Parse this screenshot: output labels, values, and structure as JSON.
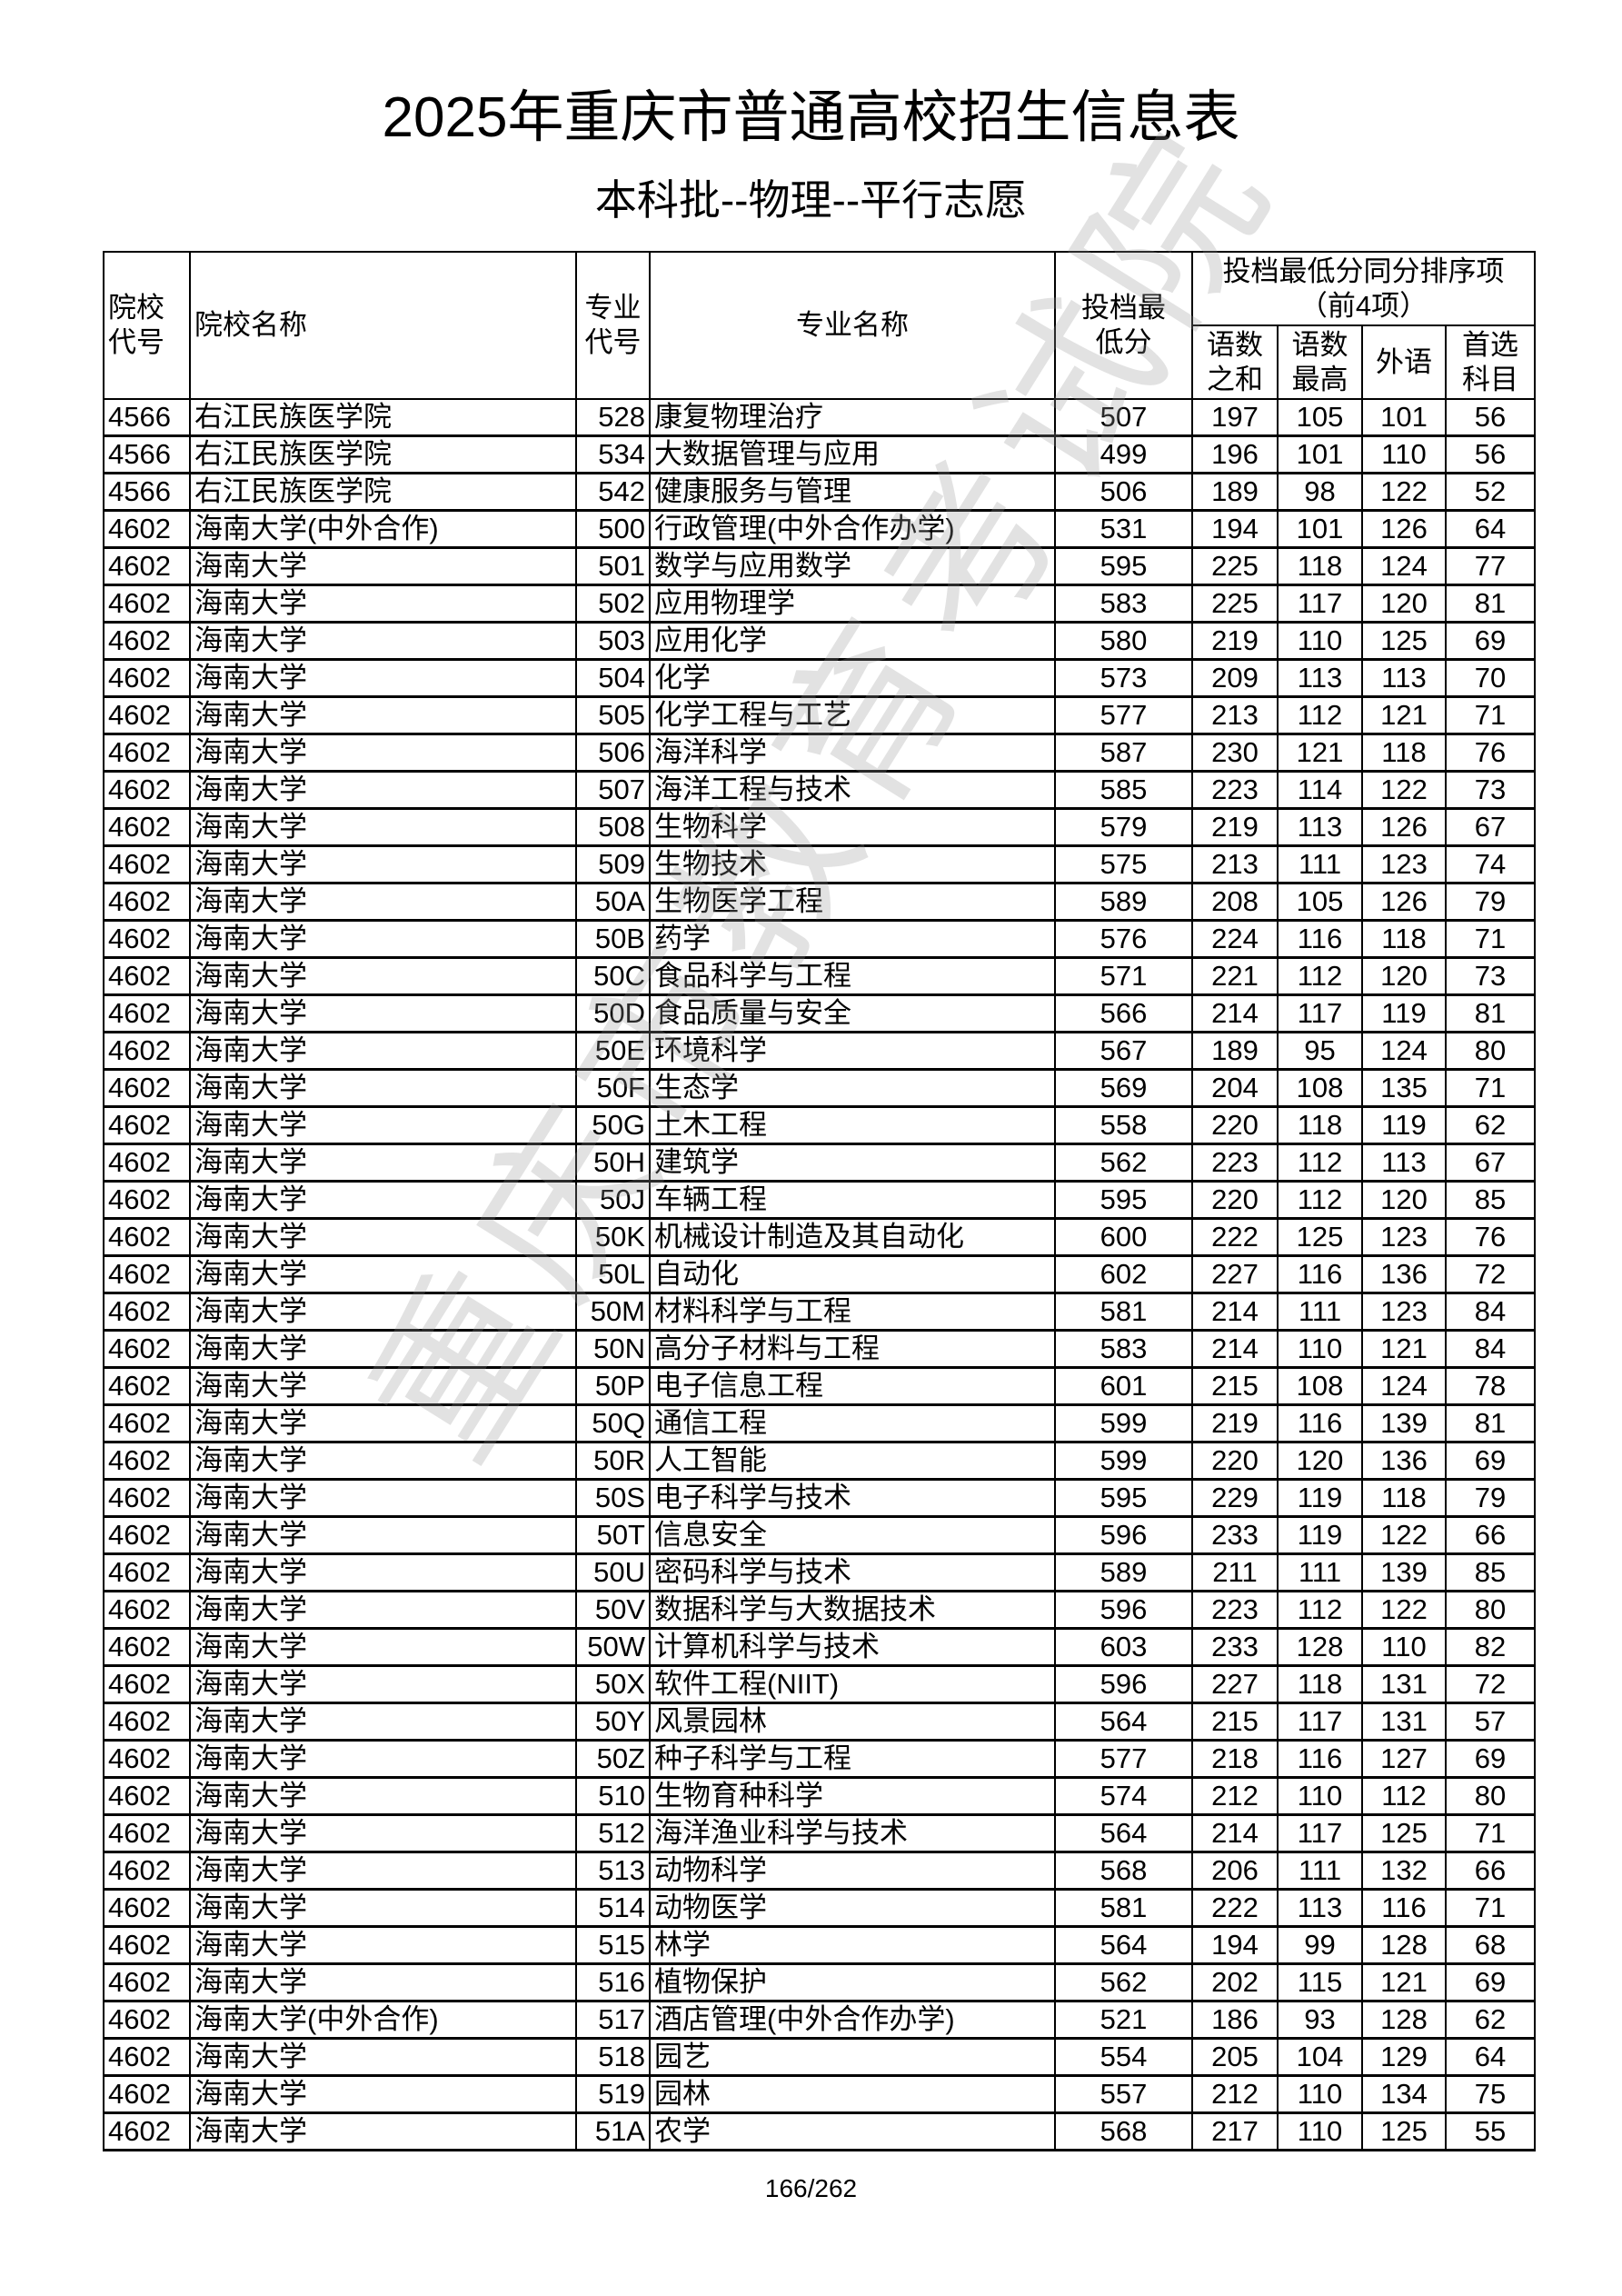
{
  "title": "2025年重庆市普通高校招生信息表",
  "subtitle": "本科批--物理--平行志愿",
  "watermark": "重庆市教育考试院",
  "header": {
    "school_code": "院校代号",
    "school_name": "院校名称",
    "major_code": "专业代号",
    "major_name": "专业名称",
    "min_score": "投档最低分",
    "tiebreak_group": "投档最低分同分排序项（前4项）",
    "tiebreak": [
      "语数之和",
      "语数最高",
      "外语",
      "首选科目"
    ]
  },
  "rows": [
    [
      "4566",
      "右江民族医学院",
      "528",
      "康复物理治疗",
      "507",
      "197",
      "105",
      "101",
      "56"
    ],
    [
      "4566",
      "右江民族医学院",
      "534",
      "大数据管理与应用",
      "499",
      "196",
      "101",
      "110",
      "56"
    ],
    [
      "4566",
      "右江民族医学院",
      "542",
      "健康服务与管理",
      "506",
      "189",
      "98",
      "122",
      "52"
    ],
    [
      "4602",
      "海南大学(中外合作)",
      "500",
      "行政管理(中外合作办学)",
      "531",
      "194",
      "101",
      "126",
      "64"
    ],
    [
      "4602",
      "海南大学",
      "501",
      "数学与应用数学",
      "595",
      "225",
      "118",
      "124",
      "77"
    ],
    [
      "4602",
      "海南大学",
      "502",
      "应用物理学",
      "583",
      "225",
      "117",
      "120",
      "81"
    ],
    [
      "4602",
      "海南大学",
      "503",
      "应用化学",
      "580",
      "219",
      "110",
      "125",
      "69"
    ],
    [
      "4602",
      "海南大学",
      "504",
      "化学",
      "573",
      "209",
      "113",
      "113",
      "70"
    ],
    [
      "4602",
      "海南大学",
      "505",
      "化学工程与工艺",
      "577",
      "213",
      "112",
      "121",
      "71"
    ],
    [
      "4602",
      "海南大学",
      "506",
      "海洋科学",
      "587",
      "230",
      "121",
      "118",
      "76"
    ],
    [
      "4602",
      "海南大学",
      "507",
      "海洋工程与技术",
      "585",
      "223",
      "114",
      "122",
      "73"
    ],
    [
      "4602",
      "海南大学",
      "508",
      "生物科学",
      "579",
      "219",
      "113",
      "126",
      "67"
    ],
    [
      "4602",
      "海南大学",
      "509",
      "生物技术",
      "575",
      "213",
      "111",
      "123",
      "74"
    ],
    [
      "4602",
      "海南大学",
      "50A",
      "生物医学工程",
      "589",
      "208",
      "105",
      "126",
      "79"
    ],
    [
      "4602",
      "海南大学",
      "50B",
      "药学",
      "576",
      "224",
      "116",
      "118",
      "71"
    ],
    [
      "4602",
      "海南大学",
      "50C",
      "食品科学与工程",
      "571",
      "221",
      "112",
      "120",
      "73"
    ],
    [
      "4602",
      "海南大学",
      "50D",
      "食品质量与安全",
      "566",
      "214",
      "117",
      "119",
      "81"
    ],
    [
      "4602",
      "海南大学",
      "50E",
      "环境科学",
      "567",
      "189",
      "95",
      "124",
      "80"
    ],
    [
      "4602",
      "海南大学",
      "50F",
      "生态学",
      "569",
      "204",
      "108",
      "135",
      "71"
    ],
    [
      "4602",
      "海南大学",
      "50G",
      "土木工程",
      "558",
      "220",
      "118",
      "119",
      "62"
    ],
    [
      "4602",
      "海南大学",
      "50H",
      "建筑学",
      "562",
      "223",
      "112",
      "113",
      "67"
    ],
    [
      "4602",
      "海南大学",
      "50J",
      "车辆工程",
      "595",
      "220",
      "112",
      "120",
      "85"
    ],
    [
      "4602",
      "海南大学",
      "50K",
      "机械设计制造及其自动化",
      "600",
      "222",
      "125",
      "123",
      "76"
    ],
    [
      "4602",
      "海南大学",
      "50L",
      "自动化",
      "602",
      "227",
      "116",
      "136",
      "72"
    ],
    [
      "4602",
      "海南大学",
      "50M",
      "材料科学与工程",
      "581",
      "214",
      "111",
      "123",
      "84"
    ],
    [
      "4602",
      "海南大学",
      "50N",
      "高分子材料与工程",
      "583",
      "214",
      "110",
      "121",
      "84"
    ],
    [
      "4602",
      "海南大学",
      "50P",
      "电子信息工程",
      "601",
      "215",
      "108",
      "124",
      "78"
    ],
    [
      "4602",
      "海南大学",
      "50Q",
      "通信工程",
      "599",
      "219",
      "116",
      "139",
      "81"
    ],
    [
      "4602",
      "海南大学",
      "50R",
      "人工智能",
      "599",
      "220",
      "120",
      "136",
      "69"
    ],
    [
      "4602",
      "海南大学",
      "50S",
      "电子科学与技术",
      "595",
      "229",
      "119",
      "118",
      "79"
    ],
    [
      "4602",
      "海南大学",
      "50T",
      "信息安全",
      "596",
      "233",
      "119",
      "122",
      "66"
    ],
    [
      "4602",
      "海南大学",
      "50U",
      "密码科学与技术",
      "589",
      "211",
      "111",
      "139",
      "85"
    ],
    [
      "4602",
      "海南大学",
      "50V",
      "数据科学与大数据技术",
      "596",
      "223",
      "112",
      "122",
      "80"
    ],
    [
      "4602",
      "海南大学",
      "50W",
      "计算机科学与技术",
      "603",
      "233",
      "128",
      "110",
      "82"
    ],
    [
      "4602",
      "海南大学",
      "50X",
      "软件工程(NIIT)",
      "596",
      "227",
      "118",
      "131",
      "72"
    ],
    [
      "4602",
      "海南大学",
      "50Y",
      "风景园林",
      "564",
      "215",
      "117",
      "131",
      "57"
    ],
    [
      "4602",
      "海南大学",
      "50Z",
      "种子科学与工程",
      "577",
      "218",
      "116",
      "127",
      "69"
    ],
    [
      "4602",
      "海南大学",
      "510",
      "生物育种科学",
      "574",
      "212",
      "110",
      "112",
      "80"
    ],
    [
      "4602",
      "海南大学",
      "512",
      "海洋渔业科学与技术",
      "564",
      "214",
      "117",
      "125",
      "71"
    ],
    [
      "4602",
      "海南大学",
      "513",
      "动物科学",
      "568",
      "206",
      "111",
      "132",
      "66"
    ],
    [
      "4602",
      "海南大学",
      "514",
      "动物医学",
      "581",
      "222",
      "113",
      "116",
      "71"
    ],
    [
      "4602",
      "海南大学",
      "515",
      "林学",
      "564",
      "194",
      "99",
      "128",
      "68"
    ],
    [
      "4602",
      "海南大学",
      "516",
      "植物保护",
      "562",
      "202",
      "115",
      "121",
      "69"
    ],
    [
      "4602",
      "海南大学(中外合作)",
      "517",
      "酒店管理(中外合作办学)",
      "521",
      "186",
      "93",
      "128",
      "62"
    ],
    [
      "4602",
      "海南大学",
      "518",
      "园艺",
      "554",
      "205",
      "104",
      "129",
      "64"
    ],
    [
      "4602",
      "海南大学",
      "519",
      "园林",
      "557",
      "212",
      "110",
      "134",
      "75"
    ],
    [
      "4602",
      "海南大学",
      "51A",
      "农学",
      "568",
      "217",
      "110",
      "125",
      "55"
    ]
  ],
  "footer": "166/262"
}
